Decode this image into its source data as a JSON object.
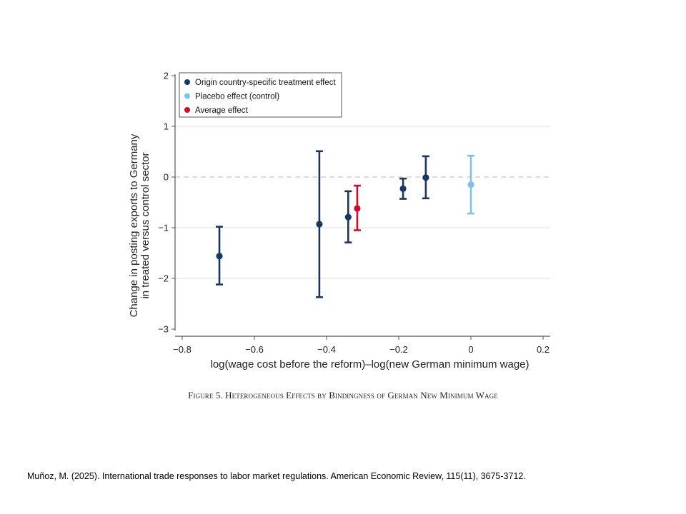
{
  "chart_data": {
    "type": "scatter",
    "subtype": "point-with-error-bars",
    "title": "",
    "xlabel": "log(wage cost before the reform)–log(new German minimum wage)",
    "ylabel_lines": [
      "Change in posting exports to Germany",
      "in treated versus control sector"
    ],
    "xlim": [
      -0.8,
      0.2
    ],
    "ylim": [
      -3,
      2
    ],
    "xticks": [
      -0.8,
      -0.6,
      -0.4,
      -0.2,
      0,
      0.2
    ],
    "xtick_labels": [
      "−0.8",
      "−0.6",
      "−0.4",
      "−0.2",
      "0",
      "0.2"
    ],
    "yticks": [
      2,
      1,
      0,
      -1,
      -2,
      -3
    ],
    "ytick_labels": [
      "2",
      "1",
      "0",
      "−1",
      "−2",
      "−3"
    ],
    "grid": true,
    "reference_line": {
      "y": 0,
      "style": "dashed"
    },
    "legend_position": "top-left",
    "series": [
      {
        "name": "Origin country-specific treatment effect",
        "color": "#1b365d",
        "points": [
          {
            "x": -0.697,
            "y": -1.56,
            "lo": -2.12,
            "hi": -0.98
          },
          {
            "x": -0.42,
            "y": -0.93,
            "lo": -2.37,
            "hi": 0.51
          },
          {
            "x": -0.34,
            "y": -0.79,
            "lo": -1.29,
            "hi": -0.28
          },
          {
            "x": -0.188,
            "y": -0.23,
            "lo": -0.43,
            "hi": -0.03
          },
          {
            "x": -0.125,
            "y": -0.01,
            "lo": -0.42,
            "hi": 0.41
          }
        ]
      },
      {
        "name": "Placebo effect (control)",
        "color": "#7ec0ee",
        "points": [
          {
            "x": 0.0,
            "y": -0.15,
            "lo": -0.72,
            "hi": 0.42
          }
        ]
      },
      {
        "name": "Average effect",
        "color": "#c8102e",
        "points": [
          {
            "x": -0.315,
            "y": -0.62,
            "lo": -1.05,
            "hi": -0.17
          }
        ]
      }
    ]
  },
  "caption": "Figure 5. Heterogeneous Effects by Bindingness of German New Minimum Wage",
  "citation": "Muñoz, M. (2025). International trade responses to labor market regulations. American Economic Review, 115(11), 3675-3712."
}
